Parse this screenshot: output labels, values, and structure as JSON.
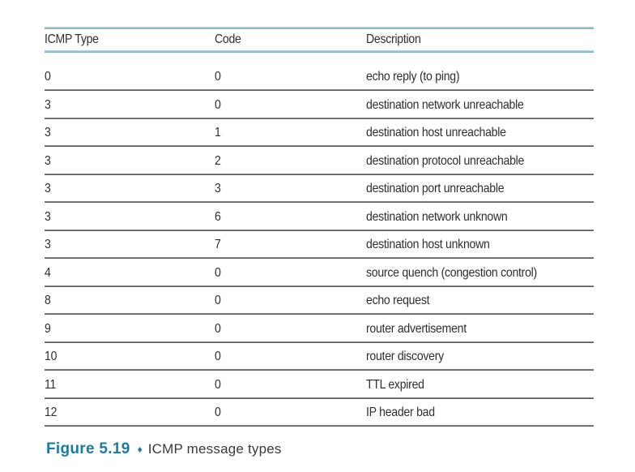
{
  "table": {
    "headers": [
      "ICMP Type",
      "Code",
      "Description"
    ],
    "rows": [
      {
        "type": "0",
        "code": "0",
        "description": "echo reply (to ping)"
      },
      {
        "type": "3",
        "code": "0",
        "description": "destination network unreachable"
      },
      {
        "type": "3",
        "code": "1",
        "description": "destination host unreachable"
      },
      {
        "type": "3",
        "code": "2",
        "description": "destination protocol unreachable"
      },
      {
        "type": "3",
        "code": "3",
        "description": "destination port unreachable"
      },
      {
        "type": "3",
        "code": "6",
        "description": "destination network unknown"
      },
      {
        "type": "3",
        "code": "7",
        "description": "destination host unknown"
      },
      {
        "type": "4",
        "code": "0",
        "description": "source quench (congestion control)"
      },
      {
        "type": "8",
        "code": "0",
        "description": "echo request"
      },
      {
        "type": "9",
        "code": "0",
        "description": "router advertisement"
      },
      {
        "type": "10",
        "code": "0",
        "description": "router discovery"
      },
      {
        "type": "11",
        "code": "0",
        "description": "TTL expired"
      },
      {
        "type": "12",
        "code": "0",
        "description": "IP header bad"
      }
    ]
  },
  "caption": {
    "figure_label": "Figure 5.19",
    "separator": "♦",
    "text": "ICMP message types"
  },
  "colors": {
    "accent_rule": "#73adc8",
    "row_rule": "#474747",
    "caption_blue": "#1a7ba3",
    "text": "#2e2e2e"
  }
}
